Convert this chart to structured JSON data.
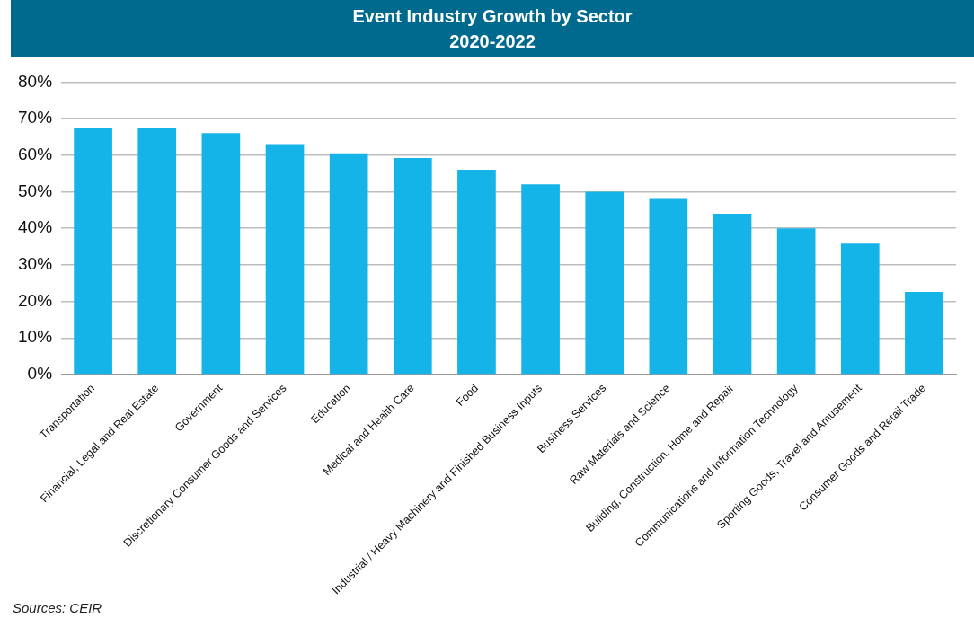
{
  "chart_data": {
    "type": "bar",
    "title": "Event Industry Growth by Sector\n2020-2022",
    "categories": [
      "Transportation",
      "Financial, Legal and Real Estate",
      "Government",
      "Discretionary Consumer Goods and Services",
      "Education",
      "Medical and Health Care",
      "Food",
      "Industrial / Heavy Machinery and Finished Business Inputs",
      "Business Services",
      "Raw Materials and Science",
      "Building, Construction, Home and Repair",
      "Communications and Information Technology",
      "Sporting Goods, Travel and Amusement",
      "Consumer Goods and Retail Trade"
    ],
    "values": [
      67.5,
      67.5,
      66,
      63,
      60.5,
      59.2,
      56,
      52,
      50,
      48.3,
      44,
      40,
      35.8,
      22.6
    ],
    "color": "#14b4e8",
    "ylim": [
      0,
      80
    ],
    "yticks": [
      {
        "value": 0,
        "label": "0%"
      },
      {
        "value": 10,
        "label": "10%"
      },
      {
        "value": 20,
        "label": "20%"
      },
      {
        "value": 30,
        "label": "30%"
      },
      {
        "value": 40,
        "label": "40%"
      },
      {
        "value": 50,
        "label": "50%"
      },
      {
        "value": 60,
        "label": "60%"
      },
      {
        "value": 70,
        "label": "70%"
      },
      {
        "value": 80,
        "label": "80%"
      }
    ],
    "grid": "y",
    "legend": false,
    "annotations": [
      "Sources: CEIR"
    ]
  }
}
